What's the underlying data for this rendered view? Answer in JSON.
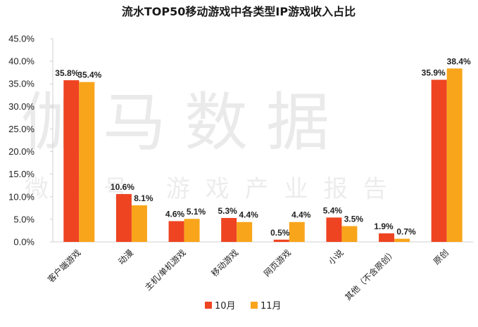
{
  "chart_data": {
    "type": "bar",
    "title": "流水TOP50移动游戏中各类型IP游戏收入占比",
    "categories": [
      "客户端游戏",
      "动漫",
      "主机/单机游戏",
      "移动游戏",
      "网页游戏",
      "小说",
      "其他（不含原创）",
      "原创"
    ],
    "series": [
      {
        "name": "10月",
        "values": [
          35.8,
          10.6,
          4.6,
          5.3,
          0.5,
          5.4,
          1.9,
          35.9
        ],
        "labels": [
          "35.8%",
          "10.6%",
          "4.6%",
          "5.3%",
          "0.5%",
          "5.4%",
          "1.9%",
          "35.9%"
        ]
      },
      {
        "name": "11月",
        "values": [
          35.4,
          8.1,
          5.1,
          4.4,
          4.4,
          3.5,
          0.7,
          38.4
        ],
        "labels": [
          "35.4%",
          "8.1%",
          "5.1%",
          "4.4%",
          "4.4%",
          "3.5%",
          "0.7%",
          "38.4%"
        ]
      }
    ],
    "yticks": [
      "0.0%",
      "5.0%",
      "10.0%",
      "15.0%",
      "20.0%",
      "25.0%",
      "30.0%",
      "35.0%",
      "40.0%",
      "45.0%"
    ],
    "ylim": [
      0,
      45
    ],
    "xlabel": "",
    "ylabel": "",
    "legend_position": "bottom"
  },
  "colors": {
    "series_10": "#ee4422",
    "series_11": "#f9a51b",
    "axis": "#d0d0d0"
  },
  "watermark": {
    "big": "伽马数据",
    "small": "微信号 游戏产业报告"
  }
}
